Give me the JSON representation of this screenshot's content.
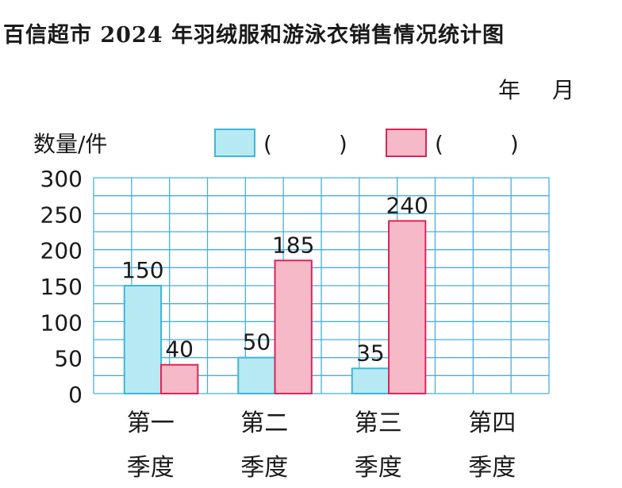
{
  "title": "百信超市 2024 年羽绒服和游泳衣销售情况统计图",
  "date_line": {
    "year": "年",
    "month": "月"
  },
  "chart_data": {
    "type": "bar",
    "title": "百信超市 2024 年羽绒服和游泳衣销售情况统计图",
    "ylabel": "数量/件",
    "ylim": [
      0,
      300
    ],
    "yticks": [
      0,
      50,
      100,
      150,
      200,
      250,
      300
    ],
    "categories": [
      [
        "第一",
        "季度"
      ],
      [
        "第二",
        "季度"
      ],
      [
        "第三",
        "季度"
      ],
      [
        "第四",
        "季度"
      ]
    ],
    "series": [
      {
        "legend_text": "(　　　)",
        "color": "#b7e9f3",
        "stroke": "#3fb6d8",
        "values": [
          150,
          50,
          35,
          null
        ]
      },
      {
        "legend_text": "(　　　)",
        "color": "#f6b9c8",
        "stroke": "#d8265a",
        "values": [
          40,
          185,
          240,
          null
        ]
      }
    ],
    "grid": true,
    "grid_color": "#4aaedc",
    "legend_position": "top"
  }
}
